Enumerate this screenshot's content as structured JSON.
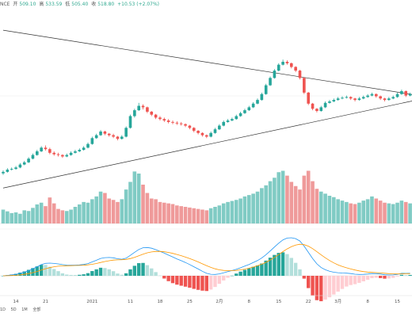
{
  "header": {
    "symbol": "NCE",
    "open_label": "开",
    "open": "509.10",
    "high_label": "高",
    "high": "533.59",
    "low_label": "低",
    "low": "505.40",
    "close_label": "收",
    "close": "518.80",
    "change": "+10.53 (+2.07%)"
  },
  "colors": {
    "up": "#26a69a",
    "down": "#ef5350",
    "vol_up": "#80cbc4",
    "vol_down": "#ef9a9a",
    "dif": "#2196f3",
    "dea": "#ff9800",
    "trend": "#333333",
    "grid": "#eeeeee",
    "axis": "#999999"
  },
  "range_buttons": [
    "1D",
    "5D",
    "1M",
    "全部"
  ],
  "chart_data": [
    {
      "type": "candlestick",
      "title": "",
      "x_labels": [
        {
          "i": 3,
          "label": "14"
        },
        {
          "i": 10,
          "label": "21"
        },
        {
          "i": 21,
          "label": "2021"
        },
        {
          "i": 30,
          "label": "11"
        },
        {
          "i": 37,
          "label": "18"
        },
        {
          "i": 44,
          "label": "25"
        },
        {
          "i": 51,
          "label": "2月"
        },
        {
          "i": 58,
          "label": "8"
        },
        {
          "i": 65,
          "label": "15"
        },
        {
          "i": 72,
          "label": "22"
        },
        {
          "i": 79,
          "label": "3月"
        },
        {
          "i": 86,
          "label": "8"
        },
        {
          "i": 93,
          "label": "15"
        }
      ],
      "ylim": [
        0,
        230
      ],
      "close": [
        12,
        15,
        16,
        18,
        22,
        25,
        30,
        35,
        40,
        45,
        43,
        38,
        36,
        35,
        33,
        35,
        38,
        40,
        42,
        45,
        50,
        58,
        62,
        67,
        64,
        62,
        60,
        57,
        60,
        72,
        88,
        96,
        102,
        100,
        94,
        90,
        86,
        84,
        82,
        80,
        79,
        78,
        77,
        75,
        72,
        68,
        65,
        62,
        60,
        65,
        70,
        75,
        80,
        82,
        84,
        88,
        92,
        96,
        100,
        105,
        110,
        118,
        130,
        140,
        150,
        158,
        162,
        160,
        155,
        150,
        140,
        120,
        105,
        98,
        95,
        100,
        106,
        108,
        110,
        112,
        113,
        114,
        112,
        110,
        112,
        114,
        116,
        118,
        115,
        112,
        110,
        112,
        114,
        118,
        122,
        116,
        118
      ],
      "candles": [
        {
          "o": 10,
          "h": 14,
          "l": 8,
          "c": 12
        },
        {
          "o": 12,
          "h": 17,
          "l": 11,
          "c": 15
        },
        {
          "o": 15,
          "h": 18,
          "l": 14,
          "c": 16
        },
        {
          "o": 16,
          "h": 20,
          "l": 15,
          "c": 18
        },
        {
          "o": 18,
          "h": 24,
          "l": 17,
          "c": 22
        },
        {
          "o": 22,
          "h": 27,
          "l": 21,
          "c": 25
        },
        {
          "o": 25,
          "h": 32,
          "l": 24,
          "c": 30
        },
        {
          "o": 30,
          "h": 37,
          "l": 29,
          "c": 35
        },
        {
          "o": 35,
          "h": 42,
          "l": 34,
          "c": 40
        },
        {
          "o": 40,
          "h": 47,
          "l": 39,
          "c": 45
        },
        {
          "o": 45,
          "h": 48,
          "l": 41,
          "c": 43
        },
        {
          "o": 43,
          "h": 45,
          "l": 36,
          "c": 38
        },
        {
          "o": 38,
          "h": 40,
          "l": 34,
          "c": 36
        },
        {
          "o": 36,
          "h": 38,
          "l": 33,
          "c": 35
        },
        {
          "o": 35,
          "h": 36,
          "l": 31,
          "c": 33
        },
        {
          "o": 33,
          "h": 37,
          "l": 32,
          "c": 35
        },
        {
          "o": 35,
          "h": 40,
          "l": 34,
          "c": 38
        },
        {
          "o": 38,
          "h": 42,
          "l": 37,
          "c": 40
        },
        {
          "o": 40,
          "h": 44,
          "l": 39,
          "c": 42
        },
        {
          "o": 42,
          "h": 47,
          "l": 41,
          "c": 45
        },
        {
          "o": 45,
          "h": 52,
          "l": 44,
          "c": 50
        },
        {
          "o": 50,
          "h": 60,
          "l": 49,
          "c": 58
        },
        {
          "o": 58,
          "h": 64,
          "l": 57,
          "c": 62
        },
        {
          "o": 62,
          "h": 69,
          "l": 61,
          "c": 67
        },
        {
          "o": 67,
          "h": 68,
          "l": 62,
          "c": 64
        },
        {
          "o": 64,
          "h": 65,
          "l": 60,
          "c": 62
        },
        {
          "o": 62,
          "h": 64,
          "l": 58,
          "c": 60
        },
        {
          "o": 60,
          "h": 61,
          "l": 55,
          "c": 57
        },
        {
          "o": 57,
          "h": 62,
          "l": 56,
          "c": 60
        },
        {
          "o": 60,
          "h": 74,
          "l": 59,
          "c": 72
        },
        {
          "o": 72,
          "h": 90,
          "l": 71,
          "c": 88
        },
        {
          "o": 88,
          "h": 98,
          "l": 86,
          "c": 96
        },
        {
          "o": 96,
          "h": 106,
          "l": 95,
          "c": 102
        },
        {
          "o": 102,
          "h": 104,
          "l": 97,
          "c": 100
        },
        {
          "o": 100,
          "h": 101,
          "l": 92,
          "c": 94
        },
        {
          "o": 94,
          "h": 95,
          "l": 88,
          "c": 90
        },
        {
          "o": 90,
          "h": 91,
          "l": 84,
          "c": 86
        },
        {
          "o": 86,
          "h": 88,
          "l": 82,
          "c": 84
        },
        {
          "o": 84,
          "h": 86,
          "l": 80,
          "c": 82
        },
        {
          "o": 82,
          "h": 84,
          "l": 78,
          "c": 80
        },
        {
          "o": 80,
          "h": 82,
          "l": 77,
          "c": 79
        },
        {
          "o": 79,
          "h": 81,
          "l": 76,
          "c": 78
        },
        {
          "o": 78,
          "h": 80,
          "l": 75,
          "c": 77
        },
        {
          "o": 77,
          "h": 78,
          "l": 73,
          "c": 75
        },
        {
          "o": 75,
          "h": 76,
          "l": 70,
          "c": 72
        },
        {
          "o": 72,
          "h": 73,
          "l": 66,
          "c": 68
        },
        {
          "o": 68,
          "h": 69,
          "l": 63,
          "c": 65
        },
        {
          "o": 65,
          "h": 66,
          "l": 60,
          "c": 62
        },
        {
          "o": 62,
          "h": 63,
          "l": 58,
          "c": 60
        },
        {
          "o": 60,
          "h": 67,
          "l": 59,
          "c": 65
        },
        {
          "o": 65,
          "h": 72,
          "l": 64,
          "c": 70
        },
        {
          "o": 70,
          "h": 77,
          "l": 69,
          "c": 75
        },
        {
          "o": 75,
          "h": 82,
          "l": 74,
          "c": 80
        },
        {
          "o": 80,
          "h": 84,
          "l": 79,
          "c": 82
        },
        {
          "o": 82,
          "h": 86,
          "l": 81,
          "c": 84
        },
        {
          "o": 84,
          "h": 90,
          "l": 83,
          "c": 88
        },
        {
          "o": 88,
          "h": 94,
          "l": 87,
          "c": 92
        },
        {
          "o": 92,
          "h": 98,
          "l": 91,
          "c": 96
        },
        {
          "o": 96,
          "h": 102,
          "l": 95,
          "c": 100
        },
        {
          "o": 100,
          "h": 107,
          "l": 99,
          "c": 105
        },
        {
          "o": 105,
          "h": 112,
          "l": 104,
          "c": 110
        },
        {
          "o": 110,
          "h": 120,
          "l": 109,
          "c": 118
        },
        {
          "o": 118,
          "h": 132,
          "l": 117,
          "c": 130
        },
        {
          "o": 130,
          "h": 142,
          "l": 129,
          "c": 140
        },
        {
          "o": 140,
          "h": 152,
          "l": 139,
          "c": 150
        },
        {
          "o": 150,
          "h": 160,
          "l": 149,
          "c": 158
        },
        {
          "o": 158,
          "h": 165,
          "l": 157,
          "c": 162
        },
        {
          "o": 162,
          "h": 164,
          "l": 158,
          "c": 160
        },
        {
          "o": 160,
          "h": 161,
          "l": 153,
          "c": 155
        },
        {
          "o": 155,
          "h": 156,
          "l": 148,
          "c": 150
        },
        {
          "o": 150,
          "h": 151,
          "l": 138,
          "c": 140
        },
        {
          "o": 140,
          "h": 141,
          "l": 118,
          "c": 120
        },
        {
          "o": 120,
          "h": 121,
          "l": 103,
          "c": 105
        },
        {
          "o": 105,
          "h": 106,
          "l": 96,
          "c": 98
        },
        {
          "o": 98,
          "h": 99,
          "l": 93,
          "c": 95
        },
        {
          "o": 95,
          "h": 102,
          "l": 94,
          "c": 100
        },
        {
          "o": 100,
          "h": 108,
          "l": 99,
          "c": 106
        },
        {
          "o": 106,
          "h": 110,
          "l": 105,
          "c": 108
        },
        {
          "o": 108,
          "h": 112,
          "l": 107,
          "c": 110
        },
        {
          "o": 110,
          "h": 114,
          "l": 109,
          "c": 112
        },
        {
          "o": 112,
          "h": 115,
          "l": 111,
          "c": 113
        },
        {
          "o": 113,
          "h": 116,
          "l": 112,
          "c": 114
        },
        {
          "o": 114,
          "h": 115,
          "l": 110,
          "c": 112
        },
        {
          "o": 112,
          "h": 113,
          "l": 108,
          "c": 110
        },
        {
          "o": 110,
          "h": 114,
          "l": 109,
          "c": 112
        },
        {
          "o": 112,
          "h": 116,
          "l": 111,
          "c": 114
        },
        {
          "o": 114,
          "h": 118,
          "l": 113,
          "c": 116
        },
        {
          "o": 116,
          "h": 120,
          "l": 115,
          "c": 118
        },
        {
          "o": 118,
          "h": 119,
          "l": 113,
          "c": 115
        },
        {
          "o": 115,
          "h": 116,
          "l": 110,
          "c": 112
        },
        {
          "o": 112,
          "h": 113,
          "l": 108,
          "c": 110
        },
        {
          "o": 110,
          "h": 114,
          "l": 109,
          "c": 112
        },
        {
          "o": 112,
          "h": 116,
          "l": 111,
          "c": 114
        },
        {
          "o": 114,
          "h": 120,
          "l": 113,
          "c": 118
        },
        {
          "o": 118,
          "h": 124,
          "l": 117,
          "c": 122
        },
        {
          "o": 122,
          "h": 123,
          "l": 114,
          "c": 116
        },
        {
          "o": 116,
          "h": 120,
          "l": 115,
          "c": 118
        }
      ],
      "trendlines": [
        {
          "start": [
            0,
            205
          ],
          "end": [
            96,
            118
          ]
        },
        {
          "start": [
            0,
            -10
          ],
          "end": [
            96,
            108
          ]
        }
      ],
      "volume": [
        40,
        35,
        30,
        32,
        28,
        38,
        36,
        45,
        55,
        60,
        50,
        75,
        58,
        42,
        38,
        36,
        40,
        48,
        55,
        62,
        60,
        70,
        78,
        92,
        88,
        72,
        68,
        62,
        70,
        98,
        120,
        150,
        144,
        112,
        88,
        72,
        70,
        62,
        60,
        58,
        56,
        52,
        50,
        48,
        46,
        44,
        42,
        40,
        38,
        44,
        48,
        52,
        58,
        62,
        65,
        68,
        72,
        78,
        82,
        86,
        92,
        102,
        110,
        122,
        132,
        148,
        152,
        138,
        120,
        108,
        98,
        138,
        152,
        122,
        100,
        92,
        86,
        80,
        76,
        70,
        66,
        62,
        58,
        56,
        60,
        66,
        70,
        78,
        72,
        66,
        60,
        58,
        56,
        60,
        66,
        62,
        58
      ]
    },
    {
      "type": "macd",
      "ylim": [
        -1,
        1
      ],
      "zero": 0
    }
  ]
}
